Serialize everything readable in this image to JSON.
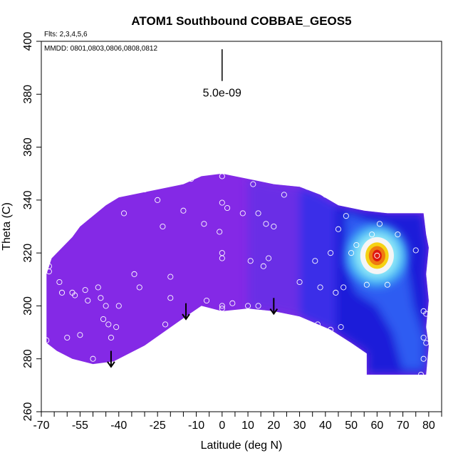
{
  "chart_data": {
    "type": "heatmap",
    "title": "ATOM1 Southbound COBBAE_GEOS5",
    "info_line_1": "Flts: 2,3,4,5,6",
    "info_line_2": "MMDD: 0801,0803,0806,0808,0812",
    "xlabel": "Latitude (deg N)",
    "ylabel": "Theta (C)",
    "xlim": [
      -70,
      85
    ],
    "ylim": [
      260,
      400
    ],
    "x_ticks": [
      -70,
      -55,
      -40,
      -25,
      -10,
      0,
      10,
      20,
      30,
      40,
      50,
      60,
      70,
      80
    ],
    "x_tick_labels": [
      "-70",
      "-55",
      "-40",
      "-25",
      "-10",
      "0",
      "10",
      "20",
      "30",
      "40",
      "50",
      "60",
      "70",
      "80"
    ],
    "x_minor_ticks": [
      -65,
      -60,
      -50,
      -45,
      -35,
      -30,
      -20,
      -15,
      -5,
      5,
      15,
      25,
      35,
      45,
      55,
      65,
      75,
      85
    ],
    "y_ticks": [
      260,
      280,
      300,
      320,
      340,
      360,
      380,
      400
    ],
    "y_tick_labels": [
      "260",
      "280",
      "300",
      "320",
      "340",
      "360",
      "380",
      "400"
    ],
    "scale_label": "5.0e-09",
    "scale_bar": {
      "x": 0,
      "y0": 385,
      "y1": 397
    },
    "colors": {
      "field_main": "#8429e6",
      "field_mid": "#6a2ee6",
      "field_east": "#3a2ee8",
      "blue_deep": "#1a1ad9",
      "blue_mid": "#2e5cf2",
      "blue_light": "#3fa8f5",
      "cyan": "#8fe9f8",
      "white_core": "#f5f5f5",
      "yellow": "#f5d214",
      "orange": "#ef7a10",
      "red": "#e01810",
      "point_stroke": "#ffffff"
    },
    "field_outline": [
      [
        -68,
        312
      ],
      [
        -66,
        318
      ],
      [
        -62,
        322
      ],
      [
        -58,
        326
      ],
      [
        -55,
        330
      ],
      [
        -50,
        334
      ],
      [
        -45,
        338
      ],
      [
        -40,
        341
      ],
      [
        -30,
        343
      ],
      [
        -15,
        346
      ],
      [
        -8,
        349
      ],
      [
        0,
        350
      ],
      [
        10,
        348
      ],
      [
        20,
        346
      ],
      [
        30,
        345
      ],
      [
        38,
        342
      ],
      [
        45,
        338
      ],
      [
        55,
        336
      ],
      [
        64,
        335
      ],
      [
        72,
        335
      ],
      [
        78,
        335
      ],
      [
        79,
        327
      ],
      [
        80,
        322
      ],
      [
        79,
        312
      ],
      [
        80,
        302
      ],
      [
        79,
        292
      ],
      [
        80,
        285
      ],
      [
        79,
        274
      ],
      [
        70,
        274
      ],
      [
        64,
        274
      ],
      [
        56,
        274
      ],
      [
        56,
        282
      ],
      [
        50,
        286
      ],
      [
        42,
        291
      ],
      [
        30,
        296
      ],
      [
        20,
        298
      ],
      [
        10,
        299
      ],
      [
        0,
        298
      ],
      [
        -8,
        300
      ],
      [
        -14,
        296
      ],
      [
        -30,
        285
      ],
      [
        -42,
        279
      ],
      [
        -50,
        278
      ],
      [
        -58,
        280
      ],
      [
        -64,
        283
      ],
      [
        -68,
        286
      ]
    ],
    "gradient_regions": [
      {
        "polygon": [
          [
            10,
            348
          ],
          [
            20,
            346
          ],
          [
            30,
            345
          ],
          [
            38,
            342
          ],
          [
            42,
            291
          ],
          [
            30,
            296
          ],
          [
            20,
            298
          ],
          [
            10,
            299
          ]
        ],
        "color": "field_mid"
      },
      {
        "polygon": [
          [
            30,
            345
          ],
          [
            38,
            342
          ],
          [
            45,
            338
          ],
          [
            52,
            336
          ],
          [
            52,
            287
          ],
          [
            42,
            291
          ],
          [
            30,
            296
          ]
        ],
        "color": "field_east"
      },
      {
        "polygon": [
          [
            44,
            338
          ],
          [
            55,
            336
          ],
          [
            64,
            335
          ],
          [
            72,
            335
          ],
          [
            78,
            335
          ],
          [
            79,
            327
          ],
          [
            80,
            322
          ],
          [
            79,
            312
          ],
          [
            80,
            302
          ],
          [
            79,
            292
          ],
          [
            80,
            285
          ],
          [
            79,
            274
          ],
          [
            56,
            274
          ],
          [
            56,
            282
          ],
          [
            50,
            286
          ],
          [
            44,
            290
          ]
        ],
        "color": "blue_deep"
      },
      {
        "polygon": [
          [
            48,
            335
          ],
          [
            56,
            332
          ],
          [
            62,
            328
          ],
          [
            68,
            322
          ],
          [
            72,
            312
          ],
          [
            74,
            300
          ],
          [
            78,
            288
          ],
          [
            78,
            276
          ],
          [
            70,
            276
          ],
          [
            66,
            290
          ],
          [
            60,
            300
          ],
          [
            52,
            305
          ],
          [
            48,
            315
          ]
        ],
        "color": "blue_mid"
      }
    ],
    "hotspot": {
      "center": [
        60,
        319
      ],
      "layers": [
        {
          "rx": 12,
          "ry": 12,
          "color": "blue_light"
        },
        {
          "rx": 9,
          "ry": 9,
          "color": "cyan"
        },
        {
          "rx": 6.5,
          "ry": 7,
          "color": "white_core"
        },
        {
          "rx": 4.5,
          "ry": 5,
          "color": "yellow"
        },
        {
          "rx": 3.2,
          "ry": 3.6,
          "color": "orange"
        },
        {
          "rx": 1.8,
          "ry": 2.2,
          "color": "red"
        }
      ]
    },
    "arrows": [
      {
        "x": -43,
        "y_top": 283,
        "y_bottom": 277
      },
      {
        "x": -14,
        "y_top": 301,
        "y_bottom": 295
      },
      {
        "x": 20,
        "y_top": 303,
        "y_bottom": 297
      }
    ],
    "points": [
      [
        -68,
        287
      ],
      [
        -67,
        313
      ],
      [
        -67,
        315
      ],
      [
        -62,
        305
      ],
      [
        -63,
        309
      ],
      [
        -60,
        288
      ],
      [
        -58,
        305
      ],
      [
        -57,
        304
      ],
      [
        -55,
        289
      ],
      [
        -53,
        306
      ],
      [
        -52,
        302
      ],
      [
        -50,
        280
      ],
      [
        -48,
        307
      ],
      [
        -47,
        303
      ],
      [
        -46,
        295
      ],
      [
        -45,
        300
      ],
      [
        -44,
        293
      ],
      [
        -43,
        288
      ],
      [
        -41,
        292
      ],
      [
        -40,
        300
      ],
      [
        -38,
        335
      ],
      [
        -37,
        344
      ],
      [
        -34,
        312
      ],
      [
        -32,
        307
      ],
      [
        -30,
        344
      ],
      [
        -25,
        340
      ],
      [
        -23,
        330
      ],
      [
        -22,
        293
      ],
      [
        -20,
        303
      ],
      [
        -20,
        311
      ],
      [
        -15,
        336
      ],
      [
        -12,
        348
      ],
      [
        -7,
        331
      ],
      [
        -6,
        302
      ],
      [
        -5,
        351
      ],
      [
        -1,
        328
      ],
      [
        0,
        320
      ],
      [
        0,
        318
      ],
      [
        0,
        300
      ],
      [
        0,
        299
      ],
      [
        0,
        339
      ],
      [
        0,
        349
      ],
      [
        2,
        337
      ],
      [
        4,
        301
      ],
      [
        8,
        335
      ],
      [
        10,
        300
      ],
      [
        11,
        317
      ],
      [
        12,
        346
      ],
      [
        14,
        335
      ],
      [
        14,
        300
      ],
      [
        16,
        315
      ],
      [
        17,
        331
      ],
      [
        18,
        318
      ],
      [
        20,
        330
      ],
      [
        24,
        342
      ],
      [
        30,
        309
      ],
      [
        33,
        345
      ],
      [
        36,
        317
      ],
      [
        37,
        293
      ],
      [
        38,
        307
      ],
      [
        40,
        342
      ],
      [
        42,
        320
      ],
      [
        42,
        291
      ],
      [
        44,
        305
      ],
      [
        45,
        329
      ],
      [
        46,
        292
      ],
      [
        47,
        307
      ],
      [
        48,
        334
      ],
      [
        50,
        320
      ],
      [
        52,
        323
      ],
      [
        56,
        308
      ],
      [
        58,
        327
      ],
      [
        60,
        319
      ],
      [
        61,
        331
      ],
      [
        64,
        308
      ],
      [
        67,
        338
      ],
      [
        68,
        327
      ],
      [
        74,
        337
      ],
      [
        75,
        321
      ],
      [
        77,
        274
      ],
      [
        78,
        280
      ],
      [
        78,
        288
      ],
      [
        79,
        286
      ],
      [
        78,
        298
      ],
      [
        79,
        297
      ]
    ]
  }
}
